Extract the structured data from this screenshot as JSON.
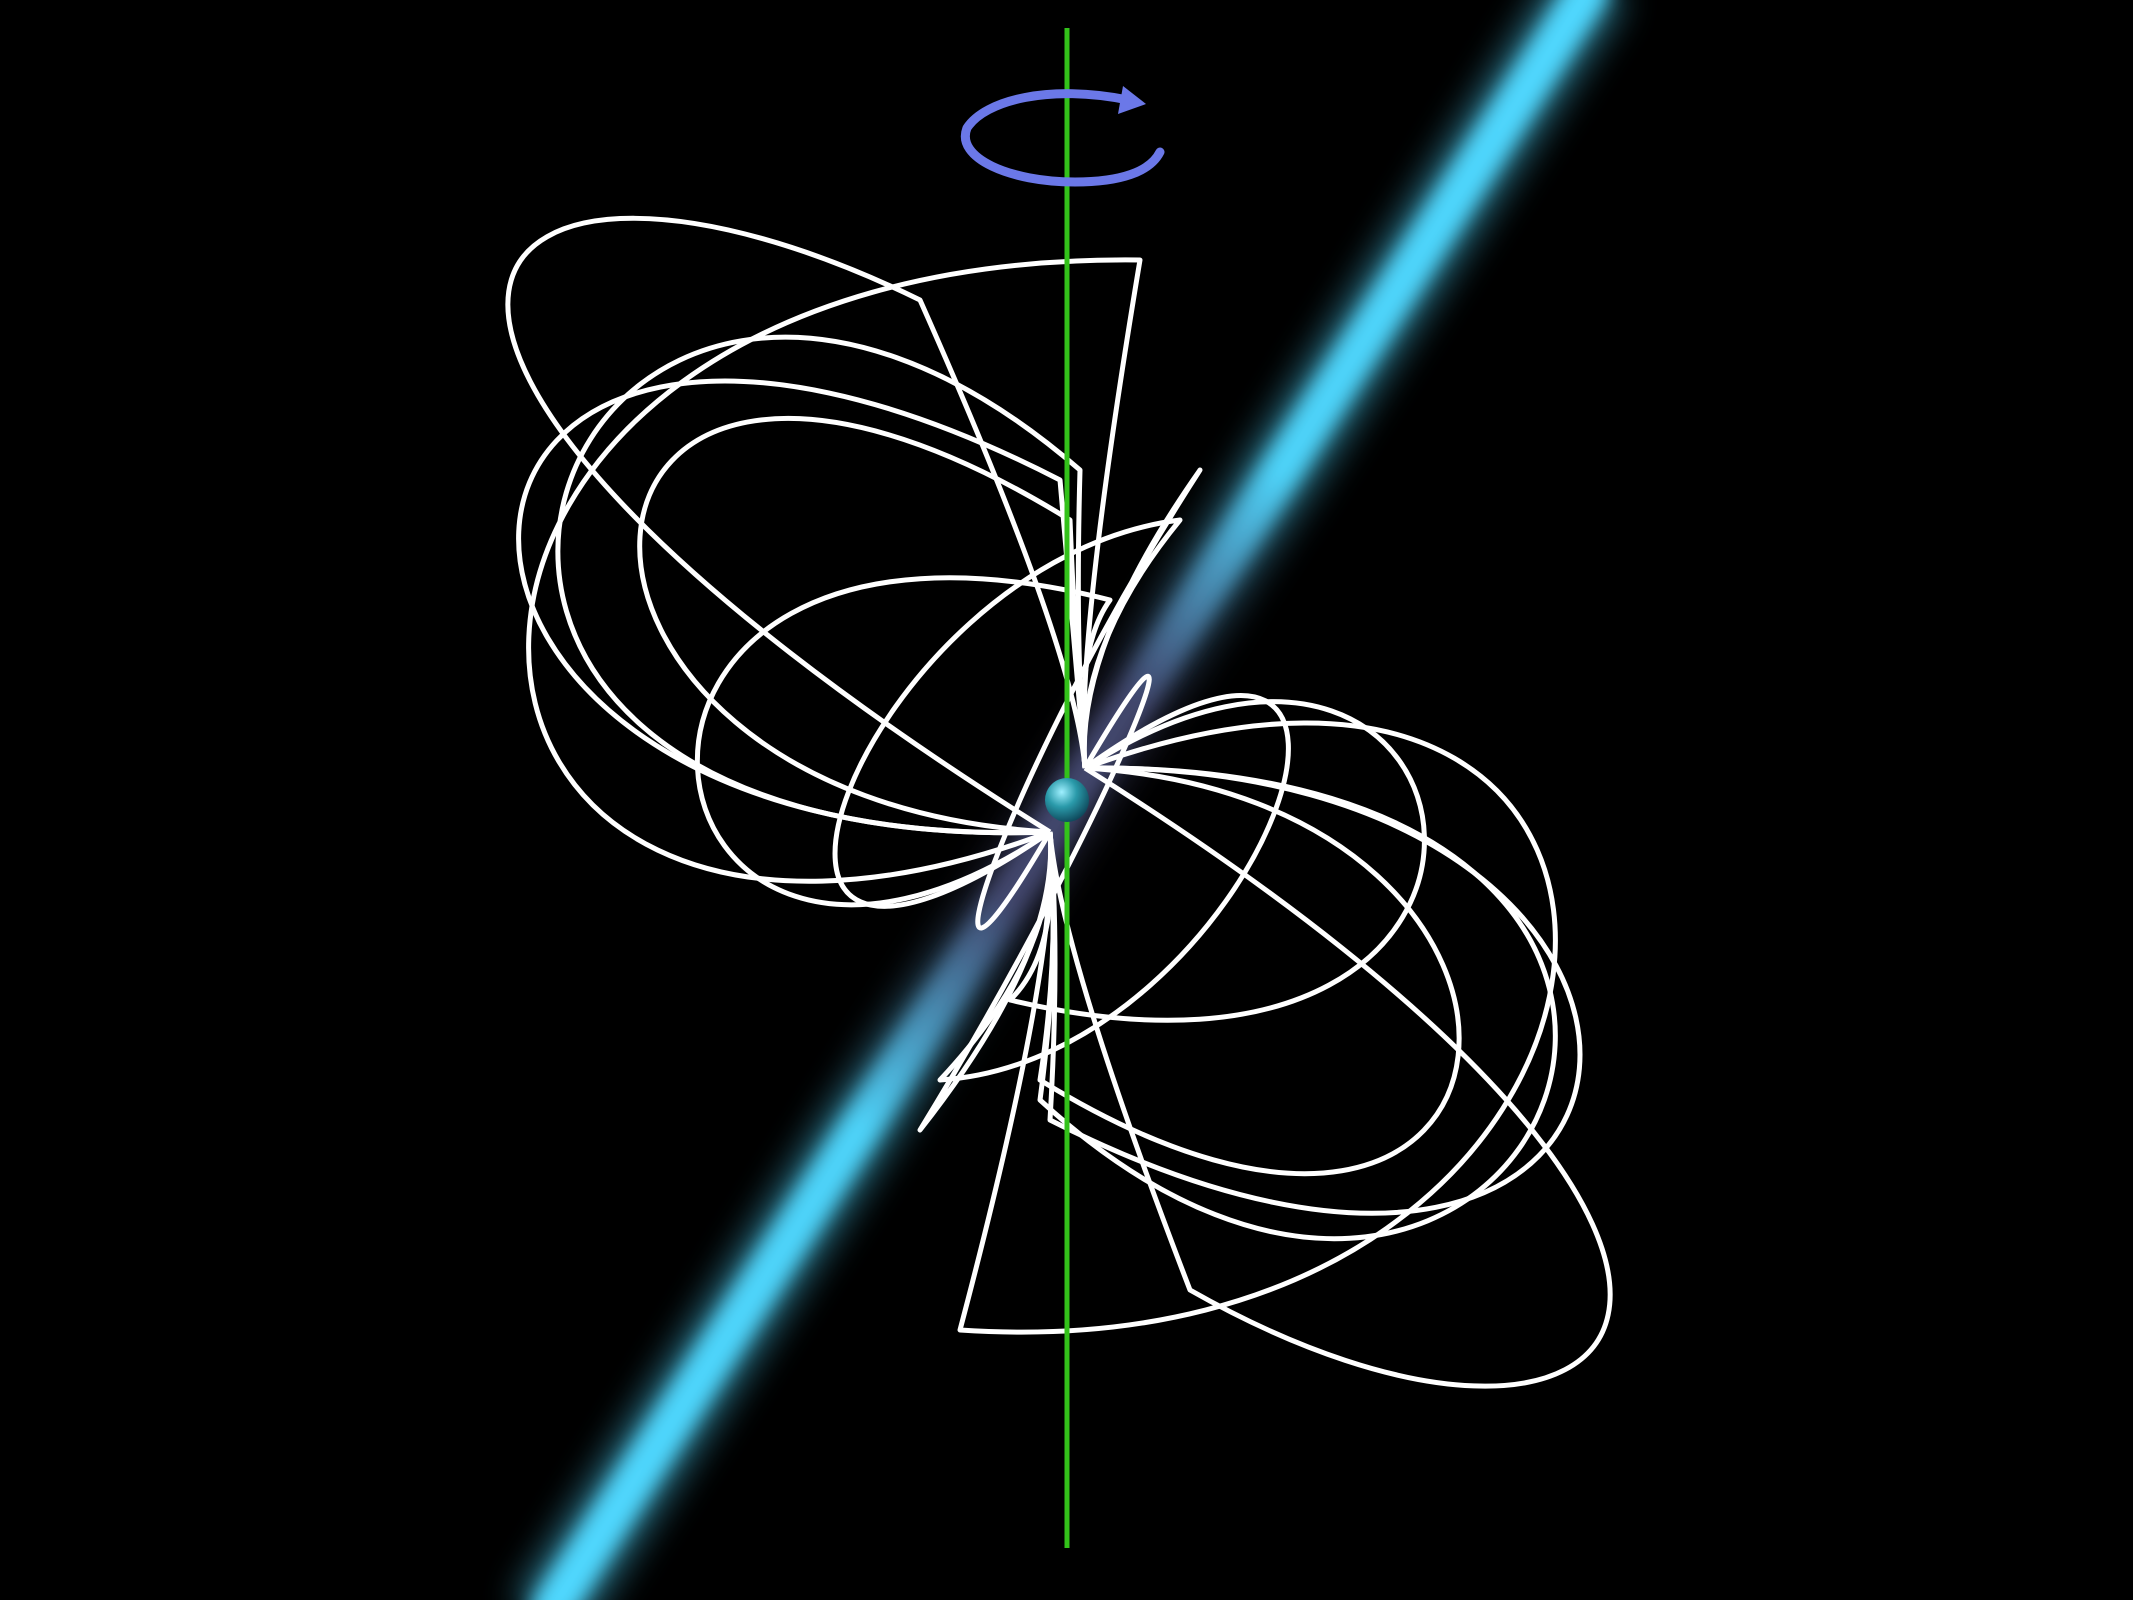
{
  "diagram": {
    "subject": "pulsar",
    "background_color": "#000000",
    "elements": {
      "rotation_axis": {
        "color": "#33c21a"
      },
      "rotation_arrow": {
        "color": "#6b78e8",
        "direction": "counterclockwise-from-viewer"
      },
      "radiation_beam": {
        "core_color": "#4fd8ff",
        "inner_color": "#4a4f7a"
      },
      "magnetic_field_lines": {
        "color": "#ffffff",
        "lobe_count_per_side": 8
      },
      "neutron_star": {
        "color": "#2a9aaa"
      }
    }
  }
}
